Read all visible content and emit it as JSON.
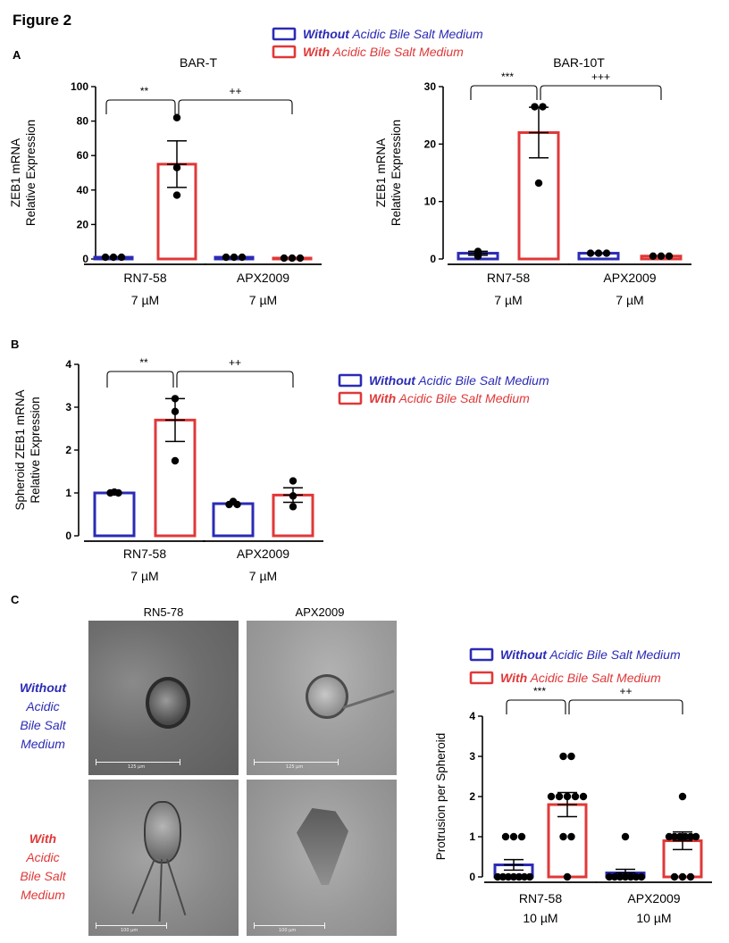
{
  "figure_title": "Figure 2",
  "colors": {
    "without": "#2b2bb5",
    "with": "#e03838",
    "dot": "#000000"
  },
  "legend": {
    "without_bold": "Without",
    "without_rest": "Acidic Bile Salt Medium",
    "with_bold": "With",
    "with_rest": "Acidic Bile Salt Medium"
  },
  "panel_labels": {
    "a": "A",
    "b": "B",
    "c": "C"
  },
  "images": {
    "col_titles": [
      "RN5-78",
      "APX2009"
    ],
    "row_without": {
      "bold": "Without",
      "lines": [
        "Acidic",
        "Bile Salt",
        "Medium"
      ]
    },
    "row_with": {
      "bold": "With",
      "lines": [
        "Acidic",
        "Bile Salt",
        "Medium"
      ]
    },
    "scale_labels": [
      "125 µm",
      "125 µm",
      "100 µm",
      "100 µm"
    ]
  },
  "chart_data": [
    {
      "type": "bar",
      "title": "BAR-T",
      "ylabel": [
        "ZEB1  mRNA",
        "Relative  Expression"
      ],
      "ylim": [
        0,
        100
      ],
      "yticks": [
        0,
        20,
        40,
        60,
        80,
        100
      ],
      "groups": [
        {
          "lines": [
            "RN7-58",
            "7 µM"
          ]
        },
        {
          "lines": [
            "APX2009",
            "7 µM"
          ]
        }
      ],
      "series": [
        {
          "name": "Without Acidic Bile Salt Medium",
          "values": [
            1,
            1
          ],
          "sem": [
            0,
            0
          ],
          "points": [
            [
              1,
              1,
              1
            ],
            [
              1,
              1,
              1
            ]
          ]
        },
        {
          "name": "With Acidic Bile Salt Medium",
          "values": [
            55,
            0.5
          ],
          "sem": [
            13.5,
            0
          ],
          "points": [
            [
              82,
              53,
              37
            ],
            [
              0.5,
              0.5,
              0.5
            ]
          ]
        }
      ],
      "significance": [
        {
          "label": "**",
          "from_bar": 0,
          "to_bar": 1
        },
        {
          "label": "++",
          "from_bar": 1,
          "to_bar": 3
        }
      ]
    },
    {
      "type": "bar",
      "title": "BAR-10T",
      "ylabel": [
        "ZEB1  mRNA",
        "Relative  Expression"
      ],
      "ylim": [
        0,
        30
      ],
      "yticks": [
        0,
        10,
        20,
        30
      ],
      "groups": [
        {
          "lines": [
            "RN7-58",
            "7 µM"
          ]
        },
        {
          "lines": [
            "APX2009",
            "7 µM"
          ]
        }
      ],
      "series": [
        {
          "name": "Without Acidic Bile Salt Medium",
          "values": [
            1,
            1
          ],
          "sem": [
            0.35,
            0
          ],
          "points": [
            [
              1.3,
              0.5,
              1.1
            ],
            [
              1,
              1,
              1
            ]
          ]
        },
        {
          "name": "With Acidic Bile Salt Medium",
          "values": [
            22,
            0.5
          ],
          "sem": [
            4.4,
            0
          ],
          "points": [
            [
              26.5,
              26.5,
              13.2
            ],
            [
              0.5,
              0.5,
              0.5
            ]
          ]
        }
      ],
      "significance": [
        {
          "label": "***",
          "from_bar": 0,
          "to_bar": 1
        },
        {
          "label": "+++",
          "from_bar": 1,
          "to_bar": 3
        }
      ]
    },
    {
      "type": "bar",
      "title": "",
      "ylabel": [
        "Spheroid  ZEB1  mRNA",
        "Relative  Expression"
      ],
      "ylim": [
        0,
        4
      ],
      "yticks": [
        0,
        1,
        2,
        3,
        4
      ],
      "groups": [
        {
          "lines": [
            "RN7-58",
            "7 µM"
          ]
        },
        {
          "lines": [
            "APX2009",
            "7 µM"
          ]
        }
      ],
      "series": [
        {
          "name": "Without Acidic Bile Salt Medium",
          "values": [
            1.0,
            0.75
          ],
          "sem": [
            0,
            0
          ],
          "points": [
            [
              1.02,
              1.0,
              1.0
            ],
            [
              0.8,
              0.73,
              0.73
            ]
          ]
        },
        {
          "name": "With Acidic Bile Salt Medium",
          "values": [
            2.7,
            0.95
          ],
          "sem": [
            0.5,
            0.17
          ],
          "points": [
            [
              3.2,
              2.9,
              1.75
            ],
            [
              1.28,
              0.93,
              0.68
            ]
          ]
        }
      ],
      "significance": [
        {
          "label": "**",
          "from_bar": 0,
          "to_bar": 1
        },
        {
          "label": "++",
          "from_bar": 1,
          "to_bar": 3
        }
      ]
    },
    {
      "type": "bar",
      "title": "",
      "ylabel": [
        "Protrusion  per  Spheroid"
      ],
      "ylim": [
        0,
        4
      ],
      "yticks": [
        0,
        1,
        2,
        3,
        4
      ],
      "groups": [
        {
          "lines": [
            "RN7-58",
            "10 µM"
          ]
        },
        {
          "lines": [
            "APX2009",
            "10 µM"
          ]
        }
      ],
      "series": [
        {
          "name": "Without Acidic Bile Salt Medium",
          "values": [
            0.3,
            0.1
          ],
          "sem": [
            0.13,
            0.09
          ],
          "points": [
            [
              1,
              1,
              1,
              0,
              0,
              0,
              0,
              0,
              0,
              0
            ],
            [
              1,
              0,
              0,
              0,
              0,
              0,
              0,
              0
            ]
          ]
        },
        {
          "name": "With Acidic Bile Salt Medium",
          "values": [
            1.8,
            0.9
          ],
          "sem": [
            0.3,
            0.22
          ],
          "points": [
            [
              3,
              3,
              2,
              2,
              2,
              2,
              2,
              1,
              1,
              0
            ],
            [
              2,
              1,
              1,
              1,
              1,
              1,
              1,
              0,
              0,
              0
            ]
          ]
        }
      ],
      "significance": [
        {
          "label": "***",
          "from_bar": 0,
          "to_bar": 1
        },
        {
          "label": "++",
          "from_bar": 1,
          "to_bar": 3
        }
      ]
    }
  ]
}
